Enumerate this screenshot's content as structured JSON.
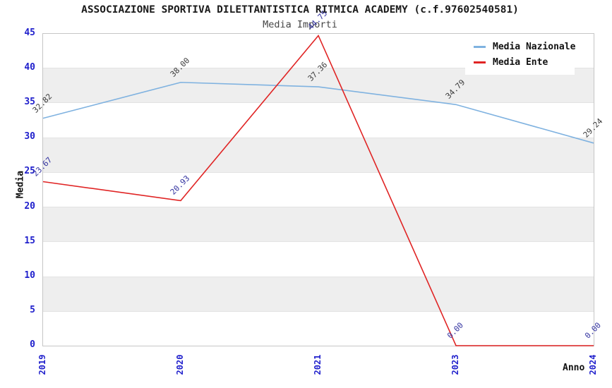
{
  "page": {
    "title": "ASSOCIAZIONE SPORTIVA DILETTANTISTICA RITMICA ACADEMY (c.f.97602540581)",
    "subtitle": "Media Importi"
  },
  "chart_data": {
    "type": "line",
    "title": "ASSOCIAZIONE SPORTIVA DILETTANTISTICA RITMICA ACADEMY (c.f.97602540581)",
    "subtitle": "Media Importi",
    "xlabel": "Anno",
    "ylabel": "Media",
    "categories": [
      "2019",
      "2020",
      "2021",
      "2023",
      "2024"
    ],
    "series": [
      {
        "name": "Media Nazionale",
        "color": "#7fb2e0",
        "label_color": "#3c3c3c",
        "values": [
          32.82,
          38.0,
          37.36,
          34.79,
          29.24
        ],
        "labels": [
          "32.82",
          "38.00",
          "37.36",
          "34.79",
          "29.24"
        ]
      },
      {
        "name": "Media Ente",
        "color": "#e02424",
        "label_color": "#3232a0",
        "values": [
          23.67,
          20.93,
          44.75,
          0.0,
          0.0
        ],
        "labels": [
          "23.67",
          "20.93",
          "44.75",
          "0.00",
          "0.00"
        ]
      }
    ],
    "ylim": [
      0,
      45
    ],
    "yticks": [
      "0",
      "5",
      "10",
      "15",
      "20",
      "25",
      "30",
      "35",
      "40",
      "45"
    ],
    "grid": "horizontal-bands",
    "band_color": "#eeeeee",
    "tick_color": "#2020cc",
    "legend_position": "top-right"
  }
}
